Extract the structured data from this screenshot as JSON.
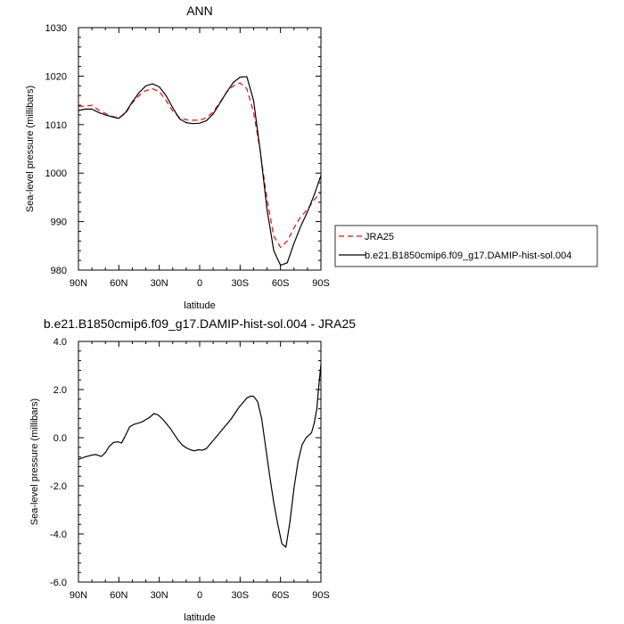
{
  "chart_data": [
    {
      "type": "line",
      "title": "ANN",
      "xlabel": "latitude",
      "ylabel": "Sea-level pressure (millibars)",
      "xlim": [
        90,
        -90
      ],
      "ylim": [
        980,
        1030
      ],
      "xticks": [
        90,
        60,
        30,
        0,
        -30,
        -60,
        -90
      ],
      "xtick_labels": [
        "90N",
        "60N",
        "30N",
        "0",
        "30S",
        "60S",
        "90S"
      ],
      "yticks": [
        980,
        990,
        1000,
        1010,
        1020,
        1030
      ],
      "ytick_labels": [
        "980",
        "990",
        "1000",
        "1010",
        "1020",
        "1030"
      ],
      "grid": false,
      "legend_position": "right-outside",
      "series": [
        {
          "name": "JRA25",
          "color": "#ff0000",
          "dash": "dashed",
          "x": [
            90,
            85,
            80,
            75,
            70,
            65,
            60,
            55,
            50,
            45,
            40,
            35,
            30,
            25,
            20,
            15,
            10,
            5,
            0,
            -5,
            -10,
            -15,
            -20,
            -25,
            -30,
            -35,
            -40,
            -45,
            -50,
            -55,
            -60,
            -65,
            -70,
            -75,
            -80,
            -85,
            -90
          ],
          "y": [
            1013.8,
            1013.8,
            1014.0,
            1013.0,
            1012.3,
            1011.7,
            1011.4,
            1012.3,
            1014.5,
            1016.0,
            1017.0,
            1017.4,
            1016.8,
            1015.0,
            1012.8,
            1011.5,
            1011.0,
            1010.9,
            1010.9,
            1011.4,
            1012.6,
            1014.6,
            1016.7,
            1018.0,
            1018.6,
            1017.4,
            1012.5,
            1004.5,
            994.5,
            987.0,
            984.7,
            986.0,
            988.7,
            991.0,
            992.5,
            994.5,
            996.0
          ]
        },
        {
          "name": "b.e21.B1850cmip6.f09_g17.DAMIP-hist-sol.004",
          "color": "#000000",
          "dash": "solid",
          "x": [
            90,
            85,
            80,
            75,
            70,
            65,
            60,
            55,
            50,
            45,
            40,
            35,
            30,
            25,
            20,
            15,
            10,
            5,
            0,
            -5,
            -10,
            -15,
            -20,
            -25,
            -30,
            -35,
            -40,
            -45,
            -50,
            -55,
            -60,
            -65,
            -70,
            -75,
            -80,
            -85,
            -90
          ],
          "y": [
            1012.9,
            1013.2,
            1013.2,
            1012.5,
            1012.0,
            1011.6,
            1011.3,
            1012.5,
            1014.7,
            1016.6,
            1018.0,
            1018.4,
            1017.8,
            1016.0,
            1013.5,
            1011.2,
            1010.4,
            1010.2,
            1010.3,
            1010.8,
            1012.2,
            1014.4,
            1016.7,
            1018.7,
            1019.8,
            1019.9,
            1015.0,
            1004.5,
            992.5,
            984.0,
            981.0,
            981.5,
            985.5,
            989.0,
            992.0,
            995.5,
            999.5
          ]
        }
      ]
    },
    {
      "type": "line",
      "title": "b.e21.B1850cmip6.f09_g17.DAMIP-hist-sol.004 - JRA25",
      "xlabel": "latitude",
      "ylabel": "Sea-level pressure (millibars)",
      "xlim": [
        90,
        -90
      ],
      "ylim": [
        -6.0,
        4.0
      ],
      "xticks": [
        90,
        60,
        30,
        0,
        -30,
        -60,
        -90
      ],
      "xtick_labels": [
        "90N",
        "60N",
        "30N",
        "0",
        "30S",
        "60S",
        "90S"
      ],
      "yticks": [
        -6,
        -4,
        -2,
        0,
        2,
        4
      ],
      "ytick_labels": [
        "-6.0",
        "-4.0",
        "-2.0",
        "0.0",
        "2.0",
        "4.0"
      ],
      "grid": false,
      "series": [
        {
          "color": "#000000",
          "dash": "solid",
          "x": [
            90,
            85,
            80,
            77,
            73,
            70,
            67,
            64,
            61,
            58,
            55,
            52,
            49,
            46,
            43,
            40,
            37,
            34,
            31,
            28,
            25,
            22,
            19,
            16,
            13,
            10,
            7,
            4,
            1,
            -2,
            -5,
            -8,
            -11,
            -14,
            -17,
            -20,
            -23,
            -26,
            -29,
            -32,
            -35,
            -38,
            -40,
            -43,
            -46,
            -49,
            -52,
            -55,
            -58,
            -61,
            -64,
            -67,
            -70,
            -73,
            -76,
            -79,
            -81,
            -83,
            -85,
            -87,
            -88,
            -90
          ],
          "y": [
            -0.9,
            -0.8,
            -0.72,
            -0.7,
            -0.78,
            -0.62,
            -0.35,
            -0.2,
            -0.17,
            -0.22,
            0.1,
            0.45,
            0.55,
            0.6,
            0.65,
            0.75,
            0.85,
            1.0,
            0.95,
            0.8,
            0.6,
            0.4,
            0.15,
            -0.1,
            -0.3,
            -0.42,
            -0.5,
            -0.55,
            -0.5,
            -0.52,
            -0.45,
            -0.25,
            -0.05,
            0.15,
            0.35,
            0.55,
            0.75,
            1.0,
            1.25,
            1.45,
            1.65,
            1.73,
            1.72,
            1.5,
            0.8,
            -0.4,
            -1.6,
            -2.7,
            -3.6,
            -4.4,
            -4.55,
            -3.5,
            -2.1,
            -1.0,
            -0.3,
            0.0,
            0.1,
            0.2,
            0.6,
            1.2,
            1.9,
            3.05
          ]
        }
      ]
    }
  ]
}
